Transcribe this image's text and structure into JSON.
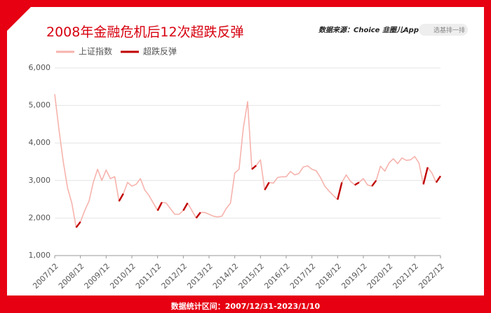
{
  "chart_data": {
    "type": "line",
    "title": "2008年金融危机后12次超跌反弹",
    "source": "数据来源：Choice 韭圈儿App",
    "search_placeholder": "选基排一排",
    "footer": "数据统计区间：2007/12/31-2023/1/10",
    "categories": [
      "2007/12",
      null,
      null,
      null,
      null,
      null,
      "2008/12",
      null,
      null,
      null,
      null,
      null,
      "2009/12",
      null,
      null,
      null,
      null,
      null,
      "2010/12",
      null,
      null,
      null,
      null,
      null,
      "2011/12",
      null,
      null,
      null,
      null,
      null,
      "2012/12",
      null,
      null,
      null,
      null,
      null,
      "2013/12",
      null,
      null,
      null,
      null,
      null,
      "2014/12",
      null,
      null,
      null,
      null,
      null,
      "2015/12",
      null,
      null,
      null,
      null,
      null,
      "2016/12",
      null,
      null,
      null,
      null,
      null,
      "2017/12",
      null,
      null,
      null,
      null,
      null,
      "2018/12",
      null,
      null,
      null,
      null,
      null,
      "2019/12",
      null,
      null,
      null,
      null,
      null,
      "2020/12",
      null,
      null,
      null,
      null,
      null,
      "2021/12",
      null,
      null,
      null,
      null,
      null,
      "2022/12"
    ],
    "series": [
      {
        "name": "上证指数",
        "color": "#f6b3ad",
        "values": [
          5300,
          4350,
          3500,
          2800,
          2400,
          1750,
          1900,
          2200,
          2450,
          2950,
          3300,
          3000,
          3280,
          3050,
          3100,
          2450,
          2650,
          2950,
          2850,
          2900,
          3050,
          2750,
          2600,
          2400,
          2200,
          2420,
          2400,
          2250,
          2100,
          2100,
          2200,
          2400,
          2200,
          2000,
          2150,
          2150,
          2100,
          2050,
          2030,
          2050,
          2250,
          2400,
          3200,
          3300,
          4400,
          5100,
          3300,
          3400,
          3550,
          2750,
          2950,
          2930,
          3080,
          3100,
          3100,
          3240,
          3150,
          3190,
          3360,
          3390,
          3300,
          3260,
          3080,
          2850,
          2720,
          2600,
          2490,
          2950,
          3150,
          2980,
          2880,
          2950,
          3050,
          2880,
          2850,
          3000,
          3380,
          3250,
          3470,
          3580,
          3450,
          3600,
          3540,
          3550,
          3640,
          3460,
          2900,
          3350,
          3200,
          2950,
          3120
        ]
      },
      {
        "name": "超跌反弹",
        "color": "#c00000",
        "values": [
          null,
          null,
          null,
          null,
          null,
          1750,
          1900,
          null,
          null,
          null,
          null,
          null,
          null,
          null,
          null,
          2450,
          2650,
          null,
          null,
          null,
          null,
          null,
          null,
          null,
          2200,
          2420,
          null,
          null,
          null,
          null,
          2200,
          2400,
          null,
          2000,
          2150,
          null,
          null,
          null,
          null,
          null,
          null,
          null,
          null,
          null,
          null,
          null,
          3300,
          3400,
          null,
          2750,
          2950,
          null,
          null,
          null,
          null,
          null,
          null,
          null,
          null,
          null,
          null,
          null,
          null,
          null,
          null,
          null,
          2490,
          2950,
          null,
          null,
          2880,
          2950,
          null,
          null,
          2850,
          3000,
          null,
          null,
          null,
          null,
          null,
          null,
          null,
          null,
          null,
          null,
          2900,
          3350,
          null,
          2950,
          3120
        ]
      }
    ],
    "ylim": [
      1000,
      6000
    ],
    "yticks": [
      {
        "value": 1000,
        "label": "1,000"
      },
      {
        "value": 2000,
        "label": "2,000"
      },
      {
        "value": 3000,
        "label": "3,000"
      },
      {
        "value": 4000,
        "label": "4,000"
      },
      {
        "value": 5000,
        "label": "5,000"
      },
      {
        "value": 6000,
        "label": "6,000"
      }
    ],
    "grid": true,
    "legend": "top-left"
  }
}
